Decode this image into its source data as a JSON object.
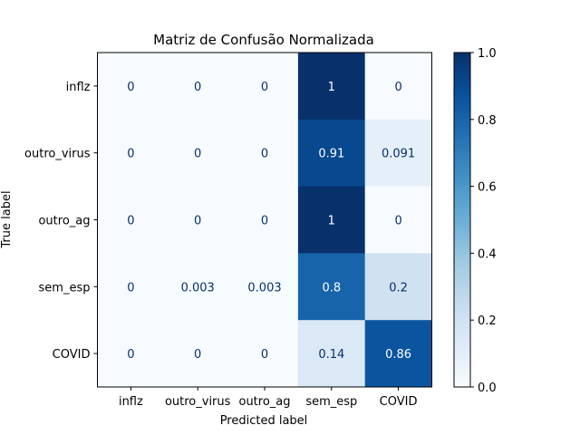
{
  "chart_data": {
    "type": "heatmap",
    "title": "Matriz de Confusão Normalizada",
    "xlabel": "Predicted label",
    "ylabel": "True label",
    "x_categories": [
      "inflz",
      "outro_virus",
      "outro_ag",
      "sem_esp",
      "COVID"
    ],
    "y_categories": [
      "inflz",
      "outro_virus",
      "outro_ag",
      "sem_esp",
      "COVID"
    ],
    "values": [
      [
        0,
        0,
        0,
        1,
        0
      ],
      [
        0,
        0,
        0,
        0.91,
        0.091
      ],
      [
        0,
        0,
        0,
        1,
        0
      ],
      [
        0,
        0.003,
        0.003,
        0.8,
        0.2
      ],
      [
        0,
        0,
        0,
        0.14,
        0.86
      ]
    ],
    "cell_labels": [
      [
        "0",
        "0",
        "0",
        "1",
        "0"
      ],
      [
        "0",
        "0",
        "0",
        "0.91",
        "0.091"
      ],
      [
        "0",
        "0",
        "0",
        "1",
        "0"
      ],
      [
        "0",
        "0.003",
        "0.003",
        "0.8",
        "0.2"
      ],
      [
        "0",
        "0",
        "0",
        "0.14",
        "0.86"
      ]
    ],
    "colormap": "Blues",
    "color_range": [
      0,
      1
    ],
    "colorbar_ticks": [
      "0.0",
      "0.2",
      "0.4",
      "0.6",
      "0.8",
      "1.0"
    ],
    "grid": false
  }
}
